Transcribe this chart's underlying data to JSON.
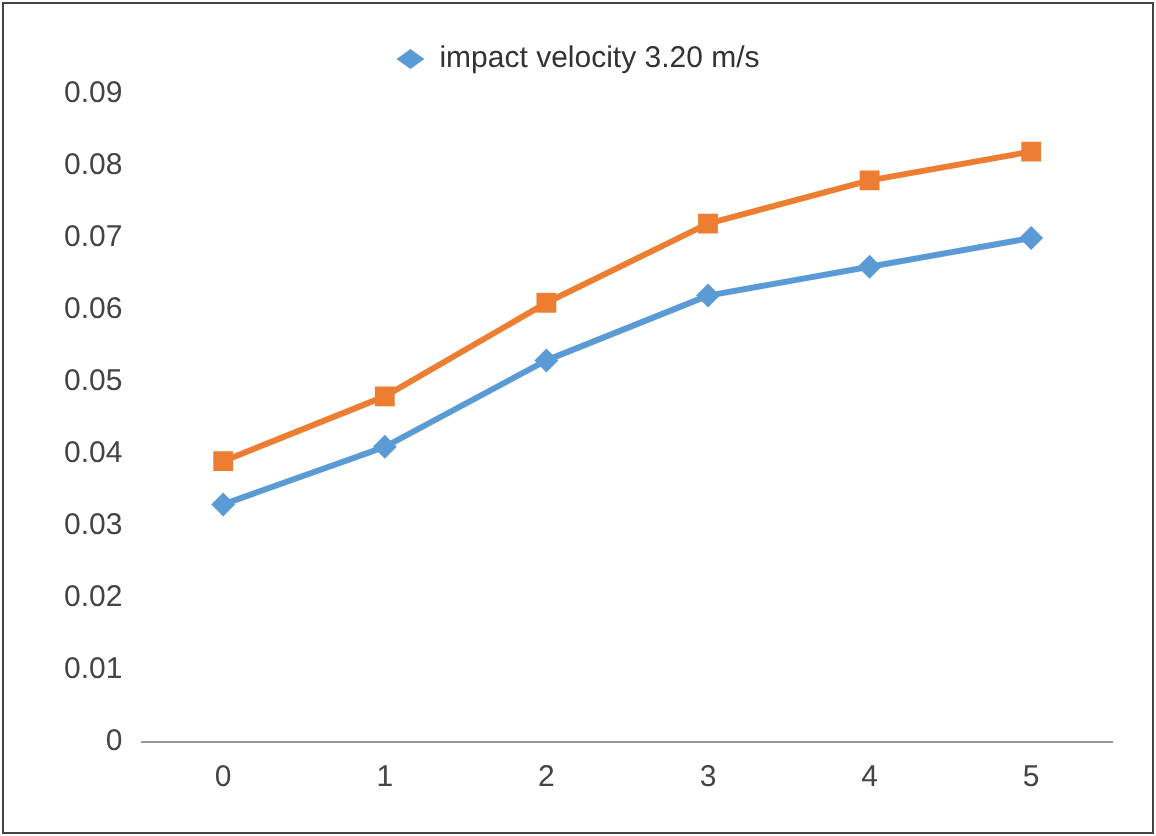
{
  "chart_data": {
    "type": "line",
    "categories": [
      "0",
      "1",
      "2",
      "3",
      "4",
      "5"
    ],
    "series": [
      {
        "name": "impact velocity 3.20 m/s",
        "color": "#5b9bd5",
        "marker": "diamond",
        "values": [
          0.033,
          0.041,
          0.053,
          0.062,
          0.066,
          0.07
        ]
      },
      {
        "color": "#ed7d31",
        "marker": "square",
        "values": [
          0.039,
          0.048,
          0.061,
          0.072,
          0.078,
          0.082
        ]
      }
    ],
    "ylim": [
      0,
      0.09
    ],
    "yticks": [
      0,
      0.01,
      0.02,
      0.03,
      0.04,
      0.05,
      0.06,
      0.07,
      0.08,
      0.09
    ],
    "grid": false,
    "legend": "top"
  }
}
